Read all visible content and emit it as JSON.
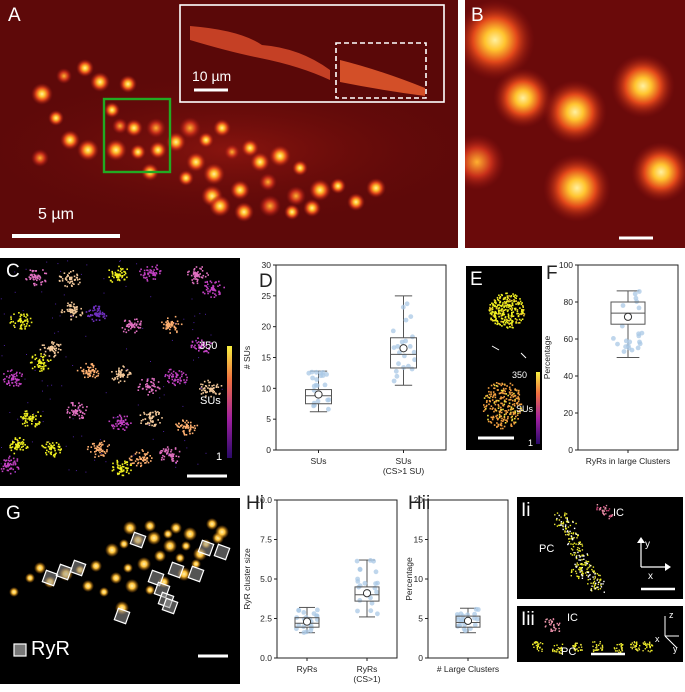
{
  "panel_labels": {
    "a": "A",
    "b": "B",
    "c": "C",
    "d": "D",
    "e": "E",
    "f": "F",
    "g": "G",
    "hi": "Hi",
    "hii": "Hii",
    "ii": "Ii",
    "iii": "Iii"
  },
  "panel_a": {
    "scale_main": "5 µm",
    "scale_inset": "10 µm"
  },
  "panel_c": {
    "cbar_max": "350",
    "cbar_label": "SUs",
    "cbar_min": "1"
  },
  "panel_e": {
    "cbar_max": "350",
    "cbar_label": "SUs",
    "cbar_min": "1"
  },
  "panel_g": {
    "legend": "RyR"
  },
  "panel_i": {
    "ic": "IC",
    "pc": "PC",
    "ax_x": "x",
    "ax_y": "y",
    "ax_z": "z"
  },
  "colors": {
    "hot_bg": "#6d0a0a",
    "blob_core": "#ffd34a",
    "box_stroke": "#22aa22",
    "boxplot_stroke": "#555555",
    "points": "#a9c8e6"
  },
  "chart_data": [
    {
      "id": "D",
      "type": "box",
      "title": "",
      "ylabel": "# SUs",
      "ylim": [
        0,
        30
      ],
      "yticks": [
        0,
        5,
        10,
        15,
        20,
        25,
        30
      ],
      "categories": [
        "SUs",
        "SUs\n(CS>1 SU)"
      ],
      "boxes": [
        {
          "min": 6.2,
          "q1": 7.5,
          "median": 8.8,
          "q3": 9.8,
          "max": 12.8,
          "mean": 9.0
        },
        {
          "min": 10.5,
          "q1": 13.3,
          "median": 15.5,
          "q3": 18.2,
          "max": 25.0,
          "mean": 16.5
        }
      ]
    },
    {
      "id": "F",
      "type": "box",
      "title": "",
      "ylabel": "Percentage",
      "ylim": [
        0,
        100
      ],
      "yticks": [
        0,
        20,
        40,
        60,
        80,
        100
      ],
      "categories": [
        "RyRs in large Clusters"
      ],
      "boxes": [
        {
          "min": 50,
          "q1": 68,
          "median": 74,
          "q3": 80,
          "max": 86,
          "mean": 72
        }
      ]
    },
    {
      "id": "Hi",
      "type": "box",
      "title": "",
      "ylabel": "RyR cluster size",
      "ylim": [
        0,
        10
      ],
      "yticks": [
        "0.0",
        "2.5",
        "5.0",
        "7.5",
        "10.0"
      ],
      "categories": [
        "RyRs",
        "RyRs\n(CS>1)"
      ],
      "boxes": [
        {
          "min": 1.6,
          "q1": 1.95,
          "median": 2.2,
          "q3": 2.55,
          "max": 3.2,
          "mean": 2.3
        },
        {
          "min": 2.6,
          "q1": 3.6,
          "median": 4.0,
          "q3": 4.5,
          "max": 6.2,
          "mean": 4.1
        }
      ]
    },
    {
      "id": "Hii",
      "type": "box",
      "title": "",
      "ylabel": "Percentage",
      "ylim": [
        0,
        20
      ],
      "yticks": [
        0,
        5,
        10,
        15,
        20
      ],
      "categories": [
        "# Large Clusters"
      ],
      "boxes": [
        {
          "min": 3.2,
          "q1": 3.9,
          "median": 4.5,
          "q3": 5.3,
          "max": 6.3,
          "mean": 4.7
        }
      ]
    }
  ]
}
